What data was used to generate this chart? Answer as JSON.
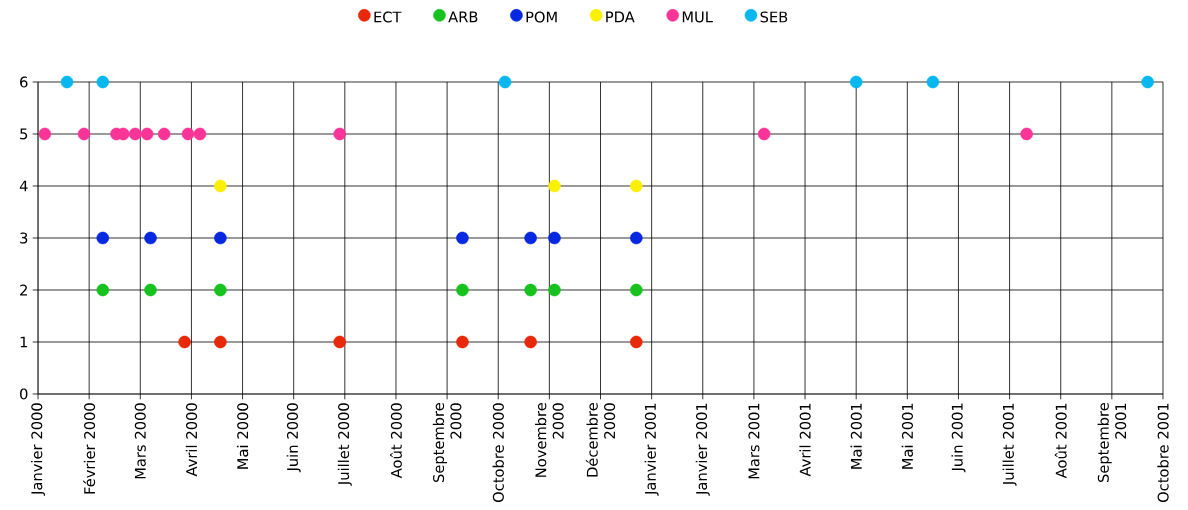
{
  "chart_data": {
    "type": "scatter",
    "marker": "circle",
    "grid": true,
    "legend": "top",
    "xlim": [
      "2000-01-07",
      "2001-10-28"
    ],
    "xticks": [
      {
        "value": "2000-01-07",
        "label": "Janvier 2000"
      },
      {
        "value": "2000-02-06",
        "label": "Février 2000"
      },
      {
        "value": "2000-03-07",
        "label": "Mars 2000"
      },
      {
        "value": "2000-04-06",
        "label": "Avril 2000"
      },
      {
        "value": "2000-05-06",
        "label": "Mai 2000"
      },
      {
        "value": "2000-06-05",
        "label": "Juin 2000"
      },
      {
        "value": "2000-07-05",
        "label": "Juillet 2000"
      },
      {
        "value": "2000-08-04",
        "label": "Août 2000"
      },
      {
        "value": "2000-09-03",
        "label": "Septembre 2000"
      },
      {
        "value": "2000-10-03",
        "label": "Octobre 2000"
      },
      {
        "value": "2000-11-02",
        "label": "Novembre 2000"
      },
      {
        "value": "2000-12-02",
        "label": "Décembre 2000"
      },
      {
        "value": "2001-01-01",
        "label": "Janvier 2001"
      },
      {
        "value": "2001-01-31",
        "label": "Janvier 2001"
      },
      {
        "value": "2001-03-02",
        "label": "Mars 2001"
      },
      {
        "value": "2001-04-01",
        "label": "Avril 2001"
      },
      {
        "value": "2001-05-01",
        "label": "Mai 2001"
      },
      {
        "value": "2001-05-31",
        "label": "Mai 2001"
      },
      {
        "value": "2001-06-30",
        "label": "Juin 2001"
      },
      {
        "value": "2001-07-30",
        "label": "Juillet 2001"
      },
      {
        "value": "2001-08-29",
        "label": "Août 2001"
      },
      {
        "value": "2001-09-28",
        "label": "Septembre 2001"
      },
      {
        "value": "2001-10-28",
        "label": "Octobre 2001"
      }
    ],
    "ylim": [
      0,
      6
    ],
    "yticks": [
      0,
      1,
      2,
      3,
      4,
      5,
      6
    ],
    "series": [
      {
        "name": "ECT",
        "color": "#e8280a",
        "x": [
          "2000-04-02",
          "2000-04-23",
          "2000-07-02",
          "2000-09-12",
          "2000-10-22",
          "2000-12-23"
        ],
        "values": [
          1,
          1,
          1,
          1,
          1,
          1
        ]
      },
      {
        "name": "ARB",
        "color": "#17c21f",
        "x": [
          "2000-02-14",
          "2000-03-13",
          "2000-04-23",
          "2000-09-12",
          "2000-10-22",
          "2000-11-05",
          "2000-12-23"
        ],
        "values": [
          2,
          2,
          2,
          2,
          2,
          2,
          2
        ]
      },
      {
        "name": "POM",
        "color": "#0628e0",
        "x": [
          "2000-02-14",
          "2000-03-13",
          "2000-04-23",
          "2000-09-12",
          "2000-10-22",
          "2000-11-05",
          "2000-12-23"
        ],
        "values": [
          3,
          3,
          3,
          3,
          3,
          3,
          3
        ]
      },
      {
        "name": "PDA",
        "color": "#fbf000",
        "x": [
          "2000-04-23",
          "2000-11-05",
          "2000-12-23"
        ],
        "values": [
          4,
          4,
          4
        ]
      },
      {
        "name": "MUL",
        "color": "#fb3597",
        "x": [
          "2000-01-11",
          "2000-02-03",
          "2000-02-22",
          "2000-02-26",
          "2000-03-04",
          "2000-03-11",
          "2000-03-21",
          "2000-04-04",
          "2000-04-11",
          "2000-07-02",
          "2001-03-08",
          "2001-08-09"
        ],
        "values": [
          5,
          5,
          5,
          5,
          5,
          5,
          5,
          5,
          5,
          5,
          5,
          5
        ]
      },
      {
        "name": "SEB",
        "color": "#06b7f0",
        "x": [
          "2000-01-24",
          "2000-02-14",
          "2000-10-07",
          "2001-05-01",
          "2001-06-15",
          "2001-10-19"
        ],
        "values": [
          6,
          6,
          6,
          6,
          6,
          6
        ]
      }
    ]
  }
}
